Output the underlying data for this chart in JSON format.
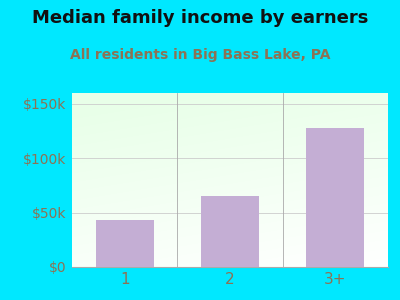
{
  "title": "Median family income by earners",
  "subtitle": "All residents in Big Bass Lake, PA",
  "categories": [
    "1",
    "2",
    "3+"
  ],
  "values": [
    43000,
    65000,
    128000
  ],
  "bar_color": "#c4aed4",
  "title_fontsize": 13,
  "subtitle_fontsize": 10,
  "subtitle_color": "#8b7355",
  "title_color": "#111111",
  "background_outer": "#00e8ff",
  "ylim": [
    0,
    160000
  ],
  "yticks": [
    0,
    50000,
    100000,
    150000
  ],
  "ytick_labels": [
    "$0",
    "$50k",
    "$100k",
    "$150k"
  ],
  "tick_color": "#8b7355",
  "grid_color": "#cccccc",
  "divider_color": "#aaaaaa",
  "xlabel_fontsize": 11,
  "ylabel_fontsize": 10
}
